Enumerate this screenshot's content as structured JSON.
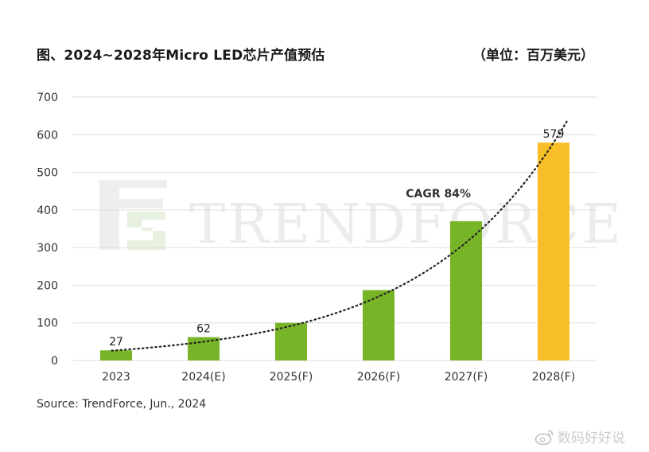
{
  "header": {
    "title": "图、2024~2028年Micro LED芯片产值预估",
    "unit": "（单位：百万美元）"
  },
  "footer": {
    "source": "Source: TrendForce, Jun., 2024"
  },
  "watermark": {
    "brand_text": "TRENDFORCE",
    "weibo_handle": "数码好好说"
  },
  "colors": {
    "green": "#78b428",
    "yellow": "#f8be28",
    "grid": "#dddddd",
    "trend": "#222222"
  },
  "chart_data": {
    "type": "bar",
    "title": "图、2024~2028年Micro LED芯片产值预估",
    "unit": "（单位：百万美元）",
    "categories": [
      "2023",
      "2024(E)",
      "2025(F)",
      "2026(F)",
      "2027(F)",
      "2028(F)"
    ],
    "values": [
      27,
      62,
      100,
      187,
      370,
      579
    ],
    "bar_colors": [
      "#78b428",
      "#78b428",
      "#78b428",
      "#78b428",
      "#78b428",
      "#f8be28"
    ],
    "data_labels": [
      "27",
      "62",
      "",
      "",
      "",
      "579"
    ],
    "ylim": [
      0,
      700
    ],
    "yticks": [
      0,
      100,
      200,
      300,
      400,
      500,
      600,
      700
    ],
    "grid": true,
    "trendline": {
      "style": "dotted exponential",
      "label": "CAGR 84%"
    },
    "legend": "none"
  }
}
